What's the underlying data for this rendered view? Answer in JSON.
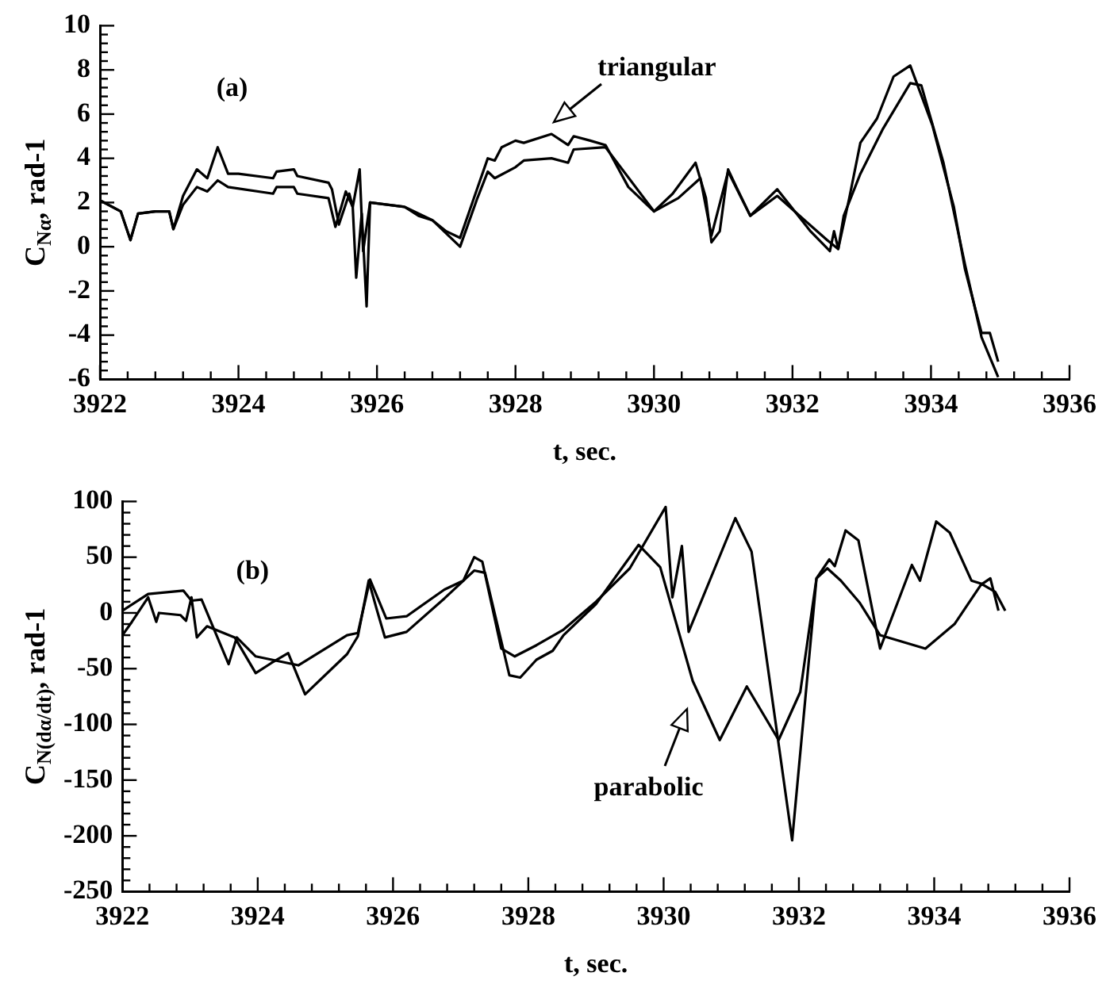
{
  "chart_data": [
    {
      "type": "line",
      "xlabel": "t, sec.",
      "ylabel": "C$_{Nα}$, rad-1",
      "marker": "none",
      "line_style": "solid",
      "legend": false,
      "grid": false,
      "xlim": [
        3922,
        3936
      ],
      "ylim": [
        -6,
        10
      ],
      "xticks": [
        3922,
        {
          "value": 3922.4,
          "label": null
        },
        {
          "value": 3922.8,
          "label": null
        },
        {
          "value": 3923.2,
          "label": null
        },
        {
          "value": 3923.6,
          "label": null
        },
        3924,
        {
          "value": 3924.4,
          "label": null
        },
        {
          "value": 3924.8,
          "label": null
        },
        {
          "value": 3925.2,
          "label": null
        },
        {
          "value": 3925.6,
          "label": null
        },
        3926,
        {
          "value": 3926.4,
          "label": null
        },
        {
          "value": 3926.8,
          "label": null
        },
        {
          "value": 3927.2,
          "label": null
        },
        {
          "value": 3927.6,
          "label": null
        },
        3928,
        {
          "value": 3928.4,
          "label": null
        },
        {
          "value": 3928.8,
          "label": null
        },
        {
          "value": 3929.2,
          "label": null
        },
        {
          "value": 3929.6,
          "label": null
        },
        3930,
        {
          "value": 3930.4,
          "label": null
        },
        {
          "value": 3930.8,
          "label": null
        },
        {
          "value": 3931.2,
          "label": null
        },
        {
          "value": 3931.6,
          "label": null
        },
        3932,
        {
          "value": 3932.4,
          "label": null
        },
        {
          "value": 3932.8,
          "label": null
        },
        {
          "value": 3933.2,
          "label": null
        },
        {
          "value": 3933.6,
          "label": null
        },
        3934,
        {
          "value": 3934.4,
          "label": null
        },
        {
          "value": 3934.8,
          "label": null
        },
        {
          "value": 3935.2,
          "label": null
        },
        {
          "value": 3935.6,
          "label": null
        },
        3936
      ],
      "yticks": [
        -6,
        {
          "value": -5.6,
          "label": null
        },
        {
          "value": -5.2,
          "label": null
        },
        {
          "value": -4.8,
          "label": null
        },
        {
          "value": -4.4,
          "label": null
        },
        -4,
        {
          "value": -3.6,
          "label": null
        },
        {
          "value": -3.2,
          "label": null
        },
        {
          "value": -2.8,
          "label": null
        },
        {
          "value": -2.4,
          "label": null
        },
        -2,
        {
          "value": -1.6,
          "label": null
        },
        {
          "value": -1.2,
          "label": null
        },
        {
          "value": -0.8,
          "label": null
        },
        {
          "value": -0.4,
          "label": null
        },
        0,
        {
          "value": 0.4,
          "label": null
        },
        {
          "value": 0.8,
          "label": null
        },
        {
          "value": 1.2,
          "label": null
        },
        {
          "value": 1.6,
          "label": null
        },
        2,
        {
          "value": 2.4,
          "label": null
        },
        {
          "value": 2.8,
          "label": null
        },
        {
          "value": 3.2,
          "label": null
        },
        {
          "value": 3.6,
          "label": null
        },
        4,
        {
          "value": 4.4,
          "label": null
        },
        {
          "value": 4.8,
          "label": null
        },
        {
          "value": 5.2,
          "label": null
        },
        {
          "value": 5.6,
          "label": null
        },
        6,
        {
          "value": 6.4,
          "label": null
        },
        {
          "value": 6.8,
          "label": null
        },
        {
          "value": 7.2,
          "label": null
        },
        {
          "value": 7.6,
          "label": null
        },
        8,
        {
          "value": 8.4,
          "label": null
        },
        {
          "value": 8.8,
          "label": null
        },
        {
          "value": 9.2,
          "label": null
        },
        {
          "value": 9.6,
          "label": null
        },
        10
      ],
      "annotations": [
        "(a)",
        {
          "text": "triangular",
          "x": 3928.5,
          "y": 5.2
        }
      ],
      "series": [
        {
          "color": "#000000",
          "x": [
            3922,
            3922.3,
            3922.44,
            3922.55,
            3922.8,
            3923.0,
            3923.06,
            3923.2,
            3923.4,
            3923.55,
            3923.7,
            3923.85,
            3924,
            3924.5,
            3924.55,
            3924.8,
            3924.85,
            3925.3,
            3925.35,
            3925.45,
            3925.6,
            3925.65,
            3925.75,
            3925.8,
            3925.9,
            3926.4,
            3926.6,
            3926.8,
            3927.0,
            3927.2,
            3927.4,
            3927.6,
            3927.7,
            3927.8,
            3928.0,
            3928.12,
            3928.52,
            3928.76,
            3928.84,
            3929.08,
            3929.3,
            3929.63,
            3930.0,
            3930.27,
            3930.6,
            3930.75,
            3930.83,
            3930.95,
            3931.07,
            3931.19,
            3931.39,
            3931.78,
            3932.26,
            3932.54,
            3932.6,
            3932.66,
            3932.82,
            3932.98,
            3933.22,
            3933.46,
            3933.7,
            3934.02,
            3934.33,
            3934.49,
            3934.73,
            3934.85,
            3934.97
          ],
          "values": [
            2.1,
            1.6,
            0.3,
            1.5,
            1.6,
            1.6,
            0.8,
            2.3,
            3.5,
            3.1,
            4.5,
            3.3,
            3.3,
            3.1,
            3.4,
            3.5,
            3.2,
            2.9,
            2.6,
            1.0,
            2.4,
            1.8,
            3.5,
            -0.2,
            2.0,
            1.8,
            1.4,
            1.2,
            0.7,
            0.4,
            2.2,
            4.0,
            3.9,
            4.5,
            4.8,
            4.7,
            5.1,
            4.6,
            5.0,
            4.8,
            4.6,
            2.7,
            1.6,
            2.4,
            3.8,
            2.2,
            0.2,
            0.7,
            3.5,
            2.7,
            1.4,
            2.6,
            0.7,
            -0.2,
            0.7,
            -0.1,
            2.2,
            4.7,
            5.8,
            7.7,
            8.2,
            5.5,
            1.8,
            -1.0,
            -3.9,
            -3.9,
            -5.2
          ]
        },
        {
          "color": "#000000",
          "x": [
            3922,
            3922.3,
            3922.44,
            3922.55,
            3922.8,
            3923.0,
            3923.06,
            3923.2,
            3923.4,
            3923.55,
            3923.7,
            3923.85,
            3924.5,
            3924.55,
            3924.8,
            3924.85,
            3925.3,
            3925.4,
            3925.55,
            3925.65,
            3925.7,
            3925.78,
            3925.85,
            3925.9,
            3926.4,
            3926.8,
            3927.2,
            3927.45,
            3927.6,
            3927.7,
            3928.0,
            3928.12,
            3928.52,
            3928.76,
            3928.84,
            3929.3,
            3930.0,
            3930.35,
            3930.67,
            3930.83,
            3931.07,
            3931.39,
            3931.78,
            3932.5,
            3932.66,
            3932.74,
            3932.98,
            3933.3,
            3933.7,
            3933.86,
            3934.18,
            3934.49,
            3934.73,
            3934.97
          ],
          "values": [
            2.1,
            1.6,
            0.3,
            1.5,
            1.6,
            1.6,
            0.8,
            1.9,
            2.7,
            2.5,
            3.0,
            2.7,
            2.4,
            2.7,
            2.7,
            2.4,
            2.2,
            0.9,
            2.5,
            1.8,
            -1.4,
            1.5,
            -2.7,
            2.0,
            1.8,
            1.2,
            0.0,
            2.2,
            3.4,
            3.1,
            3.6,
            3.9,
            4.0,
            3.8,
            4.4,
            4.5,
            1.6,
            2.2,
            3.1,
            0.5,
            3.4,
            1.4,
            2.3,
            0.3,
            -0.1,
            1.4,
            3.3,
            5.3,
            7.4,
            7.3,
            3.8,
            -0.8,
            -4.1,
            -5.9
          ]
        }
      ]
    },
    {
      "type": "line",
      "xlabel": "t, sec.",
      "ylabel": "C$_{N(dα/dt)}$, rad-1",
      "marker": "none",
      "line_style": "solid",
      "legend": false,
      "grid": false,
      "xlim": [
        3922,
        3936
      ],
      "ylim": [
        -250,
        100
      ],
      "xticks": [
        3922,
        {
          "value": 3922.4,
          "label": null
        },
        {
          "value": 3922.8,
          "label": null
        },
        {
          "value": 3923.2,
          "label": null
        },
        {
          "value": 3923.6,
          "label": null
        },
        3924,
        {
          "value": 3924.4,
          "label": null
        },
        {
          "value": 3924.8,
          "label": null
        },
        {
          "value": 3925.2,
          "label": null
        },
        {
          "value": 3925.6,
          "label": null
        },
        3926,
        {
          "value": 3926.4,
          "label": null
        },
        {
          "value": 3926.8,
          "label": null
        },
        {
          "value": 3927.2,
          "label": null
        },
        {
          "value": 3927.6,
          "label": null
        },
        3928,
        {
          "value": 3928.4,
          "label": null
        },
        {
          "value": 3928.8,
          "label": null
        },
        {
          "value": 3929.2,
          "label": null
        },
        {
          "value": 3929.6,
          "label": null
        },
        3930,
        {
          "value": 3930.4,
          "label": null
        },
        {
          "value": 3930.8,
          "label": null
        },
        {
          "value": 3931.2,
          "label": null
        },
        {
          "value": 3931.6,
          "label": null
        },
        3932,
        {
          "value": 3932.4,
          "label": null
        },
        {
          "value": 3932.8,
          "label": null
        },
        {
          "value": 3933.2,
          "label": null
        },
        {
          "value": 3933.6,
          "label": null
        },
        3934,
        {
          "value": 3934.4,
          "label": null
        },
        {
          "value": 3934.8,
          "label": null
        },
        {
          "value": 3935.2,
          "label": null
        },
        {
          "value": 3935.6,
          "label": null
        },
        3936
      ],
      "yticks": [
        -250,
        {
          "value": -240,
          "label": null
        },
        {
          "value": -230,
          "label": null
        },
        {
          "value": -220,
          "label": null
        },
        {
          "value": -210,
          "label": null
        },
        -200,
        {
          "value": -190,
          "label": null
        },
        {
          "value": -180,
          "label": null
        },
        {
          "value": -170,
          "label": null
        },
        {
          "value": -160,
          "label": null
        },
        -150,
        {
          "value": -140,
          "label": null
        },
        {
          "value": -130,
          "label": null
        },
        {
          "value": -120,
          "label": null
        },
        {
          "value": -110,
          "label": null
        },
        -100,
        {
          "value": -90,
          "label": null
        },
        {
          "value": -80,
          "label": null
        },
        {
          "value": -70,
          "label": null
        },
        {
          "value": -60,
          "label": null
        },
        -50,
        {
          "value": -40,
          "label": null
        },
        {
          "value": -30,
          "label": null
        },
        {
          "value": -20,
          "label": null
        },
        {
          "value": -10,
          "label": null
        },
        0,
        {
          "value": 10,
          "label": null
        },
        {
          "value": 20,
          "label": null
        },
        {
          "value": 30,
          "label": null
        },
        {
          "value": 40,
          "label": null
        },
        50,
        {
          "value": 60,
          "label": null
        },
        {
          "value": 70,
          "label": null
        },
        {
          "value": 80,
          "label": null
        },
        {
          "value": 90,
          "label": null
        },
        100
      ],
      "annotations": [
        "(b)",
        {
          "text": "parabolic",
          "x": 3930.4,
          "y": -75
        }
      ],
      "series": [
        {
          "color": "#000000",
          "x": [
            3922,
            3922.38,
            3922.9,
            3923.02,
            3923.17,
            3923.57,
            3923.69,
            3923.97,
            3924.6,
            3925.32,
            3925.48,
            3925.66,
            3925.9,
            3926.2,
            3926.76,
            3927.04,
            3927.2,
            3927.32,
            3927.6,
            3927.8,
            3928.12,
            3928.52,
            3929.0,
            3929.5,
            3930.03,
            3930.13,
            3930.27,
            3930.37,
            3931.06,
            3931.3,
            3931.9,
            3932.26,
            3932.45,
            3932.53,
            3932.69,
            3932.88,
            3933.2,
            3933.67,
            3933.79,
            3934.03,
            3934.23,
            3934.55,
            3934.71,
            3934.83,
            3934.95
          ],
          "values": [
            2,
            17,
            20,
            11,
            12,
            -46,
            -22,
            -39,
            -47,
            -20,
            -18,
            30,
            -5,
            -3,
            21,
            29,
            50,
            46,
            -32,
            -39,
            -29,
            -15,
            10,
            40,
            95,
            14,
            60,
            -17,
            85,
            55,
            -204,
            31,
            48,
            42,
            74,
            65,
            -32,
            43,
            29,
            82,
            72,
            29,
            26,
            31,
            2
          ]
        },
        {
          "color": "#000000",
          "x": [
            3922,
            3922.14,
            3922.38,
            3922.5,
            3922.54,
            3922.86,
            3922.94,
            3923.02,
            3923.1,
            3923.25,
            3923.66,
            3923.97,
            3924.2,
            3924.45,
            3924.7,
            3925.32,
            3925.48,
            3925.64,
            3925.76,
            3925.88,
            3926.2,
            3926.76,
            3927.2,
            3927.36,
            3927.72,
            3927.88,
            3928.12,
            3928.36,
            3928.52,
            3929.0,
            3929.63,
            3929.95,
            3930.43,
            3930.83,
            3931.23,
            3931.7,
            3932.02,
            3932.26,
            3932.42,
            3932.62,
            3932.9,
            3933.2,
            3933.87,
            3934.3,
            3934.7,
            3934.9,
            3935.05
          ],
          "values": [
            -20,
            -8,
            14,
            -8,
            0,
            -2,
            -7,
            14,
            -22,
            -12,
            -22,
            -54,
            -45,
            -36,
            -73,
            -37,
            -21,
            29,
            3,
            -22,
            -17,
            13,
            38,
            36,
            -56,
            -58,
            -42,
            -34,
            -20,
            8,
            61,
            41,
            -61,
            -114,
            -66,
            -114,
            -71,
            31,
            40,
            29,
            9,
            -20,
            -32,
            -10,
            26,
            19,
            2
          ]
        }
      ]
    }
  ]
}
